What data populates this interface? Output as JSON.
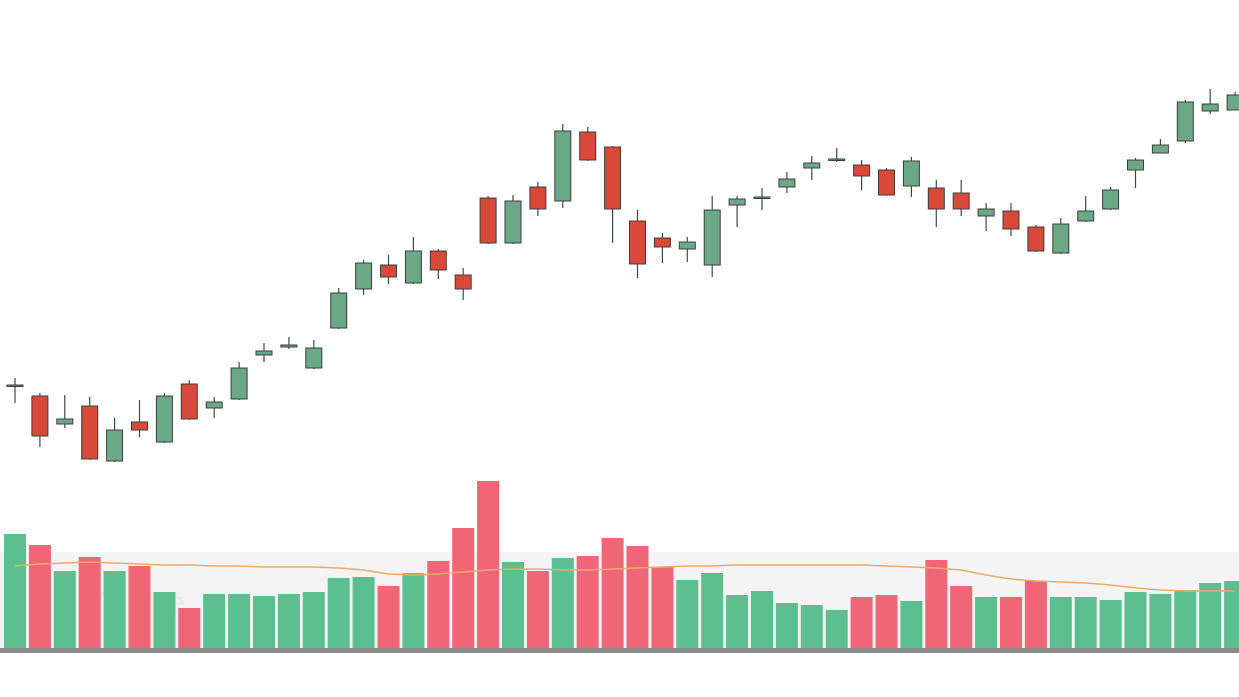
{
  "chart_data": {
    "type": "candlestick",
    "volume_label": "Volume",
    "ylim": [
      0,
      120
    ],
    "y2lim": [
      0,
      200
    ],
    "up_color": "#6aa886",
    "down_color": "#d9493a",
    "volume_up_color": "#5cbf8f",
    "volume_down_color": "#ef6676",
    "ma_color": "#f0a868",
    "open": [
      43,
      40.8,
      35.2,
      38.8,
      27.8,
      35.6,
      31.6,
      43.2,
      38.4,
      40.2,
      49,
      50.6,
      46.4,
      54.4,
      62.2,
      67,
      63.4,
      69.8,
      65,
      80.4,
      71.4,
      82.6,
      79.8,
      93.6,
      90.6,
      75.8,
      72.4,
      70.2,
      67,
      79,
      80.6,
      82.6,
      86.4,
      88.2,
      87,
      86,
      82.8,
      82.4,
      81.4,
      76.8,
      77.8,
      74.6,
      69.4,
      75.8,
      78.2,
      86,
      89.4,
      91.8,
      97.8,
      98
    ],
    "high": [
      44.4,
      41.4,
      41,
      40.6,
      36.4,
      40,
      41.4,
      44,
      40.6,
      47.6,
      51.4,
      52.6,
      52,
      62.4,
      68,
      69,
      72.6,
      70.2,
      66.4,
      80.8,
      81,
      83.6,
      95.2,
      94.6,
      90.8,
      78,
      73.4,
      72.6,
      80.8,
      80.8,
      82.4,
      85.6,
      88.8,
      90.4,
      88,
      86.4,
      88.6,
      84,
      84,
      79.4,
      79.4,
      75,
      76.4,
      80.8,
      82.6,
      88.4,
      92.2,
      100,
      102.2,
      101.6
    ],
    "low": [
      39.4,
      30.6,
      34.4,
      28,
      27.6,
      32.6,
      31.4,
      36,
      36.4,
      40,
      47.6,
      50.2,
      46.2,
      54.2,
      61,
      63.2,
      63.2,
      64.2,
      60,
      71.2,
      71.2,
      76.8,
      78.4,
      87.8,
      71.4,
      64.4,
      67.4,
      67.6,
      64.6,
      74.6,
      78,
      81.4,
      84,
      87.6,
      82,
      80.8,
      80.6,
      74.6,
      76.8,
      73.8,
      72.8,
      69.6,
      69.2,
      75.6,
      78,
      82.4,
      89.4,
      91.4,
      97.2,
      98
    ],
    "close": [
      43,
      32.8,
      36.2,
      28.2,
      34,
      34,
      40.8,
      36.2,
      39.6,
      46.4,
      49.8,
      51,
      50.4,
      61.4,
      67.4,
      64.6,
      69.8,
      66,
      62.2,
      71.4,
      79.8,
      78.2,
      93.8,
      88,
      78.2,
      67.2,
      70.6,
      71.6,
      78,
      80.2,
      80.6,
      84.2,
      87.4,
      88.2,
      84.8,
      81,
      87.8,
      78.2,
      78.2,
      78.2,
      74.2,
      69.8,
      75.2,
      77.8,
      82,
      88,
      91,
      99.6,
      99.2,
      101
    ],
    "volume": [
      114,
      103,
      77,
      91,
      77,
      82,
      56,
      40,
      54,
      54,
      52,
      54,
      56,
      70,
      71,
      62,
      75,
      87,
      120,
      167,
      86,
      77,
      90,
      92,
      110,
      102,
      81,
      68,
      75,
      53,
      57,
      45,
      43,
      38,
      51,
      53,
      47,
      88,
      62,
      51,
      51,
      67,
      51,
      51,
      48,
      56,
      54,
      58,
      65,
      67
    ],
    "ma": [
      82,
      84,
      85,
      86,
      85,
      84,
      83,
      83,
      82,
      82,
      81,
      81,
      81,
      80,
      78,
      74,
      73,
      74,
      76,
      78,
      79,
      79,
      78,
      78,
      79,
      80,
      81,
      82,
      82,
      83,
      83,
      83,
      83,
      83,
      83,
      82,
      81,
      80,
      78,
      73,
      69,
      67,
      66,
      65,
      63,
      60,
      58,
      57,
      57,
      57
    ]
  }
}
